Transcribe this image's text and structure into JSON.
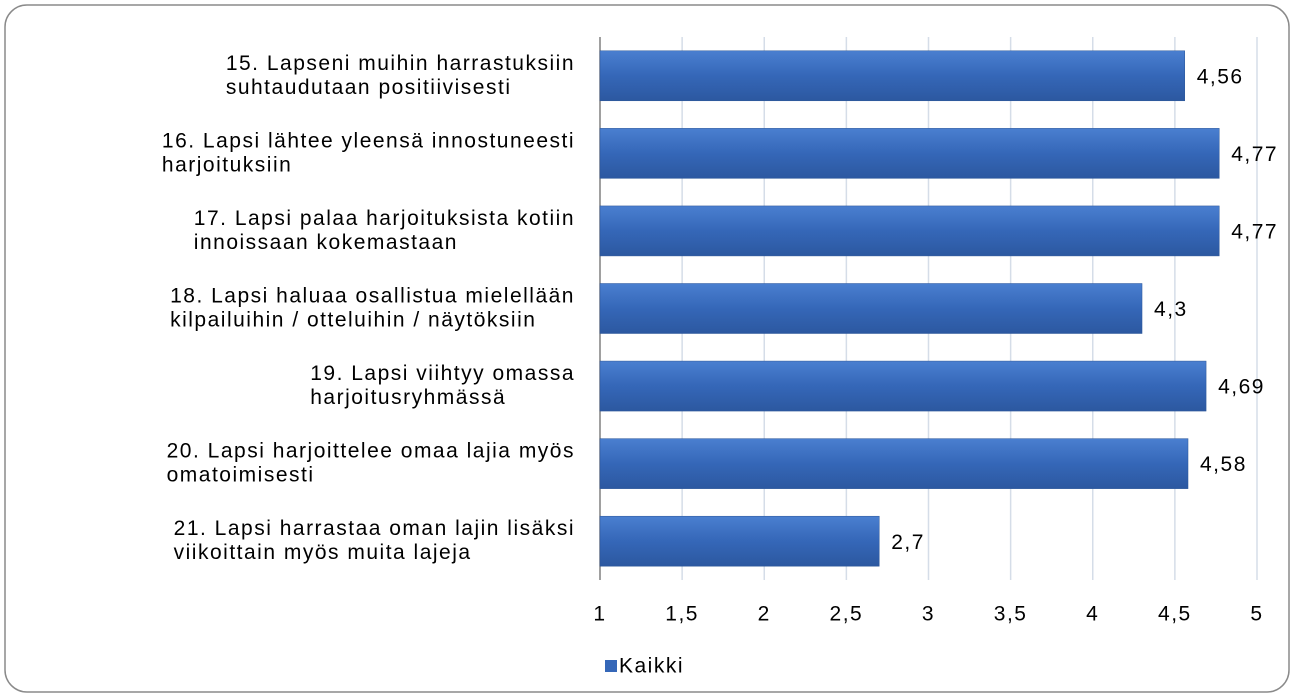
{
  "chart_data": {
    "type": "barh",
    "categories": [
      [
        "15. Lapseni muihin harrastuksiin",
        "suhtaudutaan positiivisesti"
      ],
      [
        "16. Lapsi lähtee yleensä innostuneesti",
        "harjoituksiin"
      ],
      [
        "17. Lapsi palaa harjoituksista kotiin",
        "innoissaan kokemastaan"
      ],
      [
        "18. Lapsi haluaa osallistua mielellään",
        "kilpailuihin / otteluihin / näytöksiin"
      ],
      [
        "19. Lapsi viihtyy omassa",
        "harjoitusryhmässä"
      ],
      [
        "20. Lapsi harjoittelee omaa lajia myös",
        "omatoimisesti"
      ],
      [
        "21. Lapsi harrastaa oman lajin lisäksi",
        "viikoittain myös muita lajeja"
      ]
    ],
    "series": [
      {
        "name": "Kaikki",
        "color": "#3567b8",
        "values": [
          4.56,
          4.77,
          4.77,
          4.3,
          4.69,
          4.58,
          2.7
        ],
        "value_labels": [
          "4,56",
          "4,77",
          "4,77",
          "4,3",
          "4,69",
          "4,58",
          "2,7"
        ]
      }
    ],
    "xlim": [
      1,
      5
    ],
    "xticks": [
      1,
      {
        "value": 1.5,
        "label": "1,5"
      },
      2,
      {
        "value": 2.5,
        "label": "2,5"
      },
      3,
      {
        "value": 3.5,
        "label": "3,5"
      },
      4,
      {
        "value": 4.5,
        "label": "4,5"
      },
      5
    ],
    "grid": true,
    "legend": "bottom"
  }
}
